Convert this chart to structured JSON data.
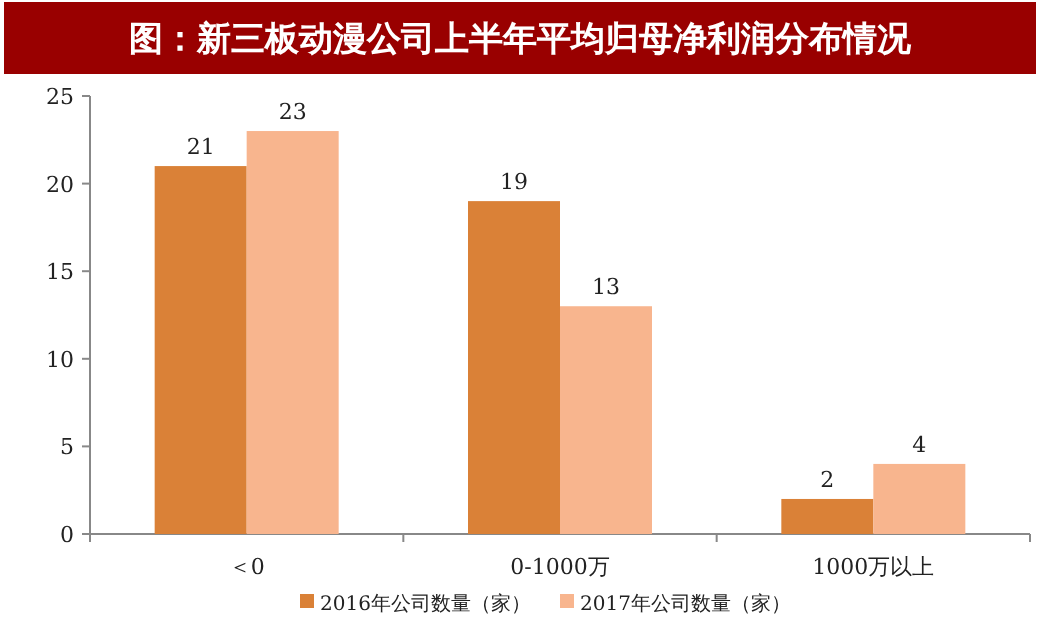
{
  "chart_data": {
    "type": "bar",
    "title": "图：新三板动漫公司上半年平均归母净利润分布情况",
    "categories": [
      "＜0",
      "0-1000万",
      "1000万以上"
    ],
    "series": [
      {
        "name": "2016年公司数量（家）",
        "color": "#da8137",
        "values": [
          21,
          19,
          2
        ]
      },
      {
        "name": "2017年公司数量（家）",
        "color": "#f8b58e",
        "values": [
          23,
          13,
          4
        ]
      }
    ],
    "ylim": [
      0,
      25
    ],
    "yticks": [
      0,
      5,
      10,
      15,
      20,
      25
    ],
    "data_labels": true,
    "legend": "bottom",
    "grid": false
  }
}
